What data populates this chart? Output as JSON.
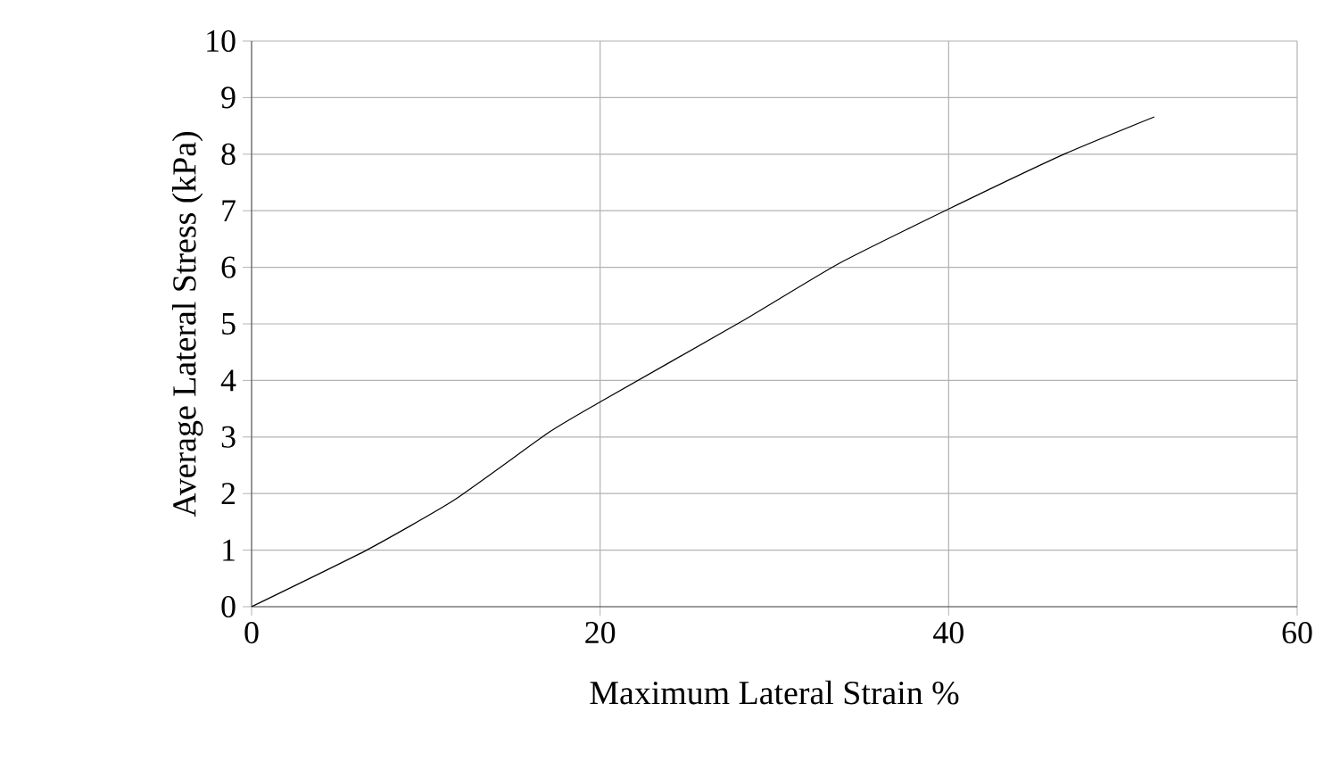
{
  "chart_data": {
    "type": "line",
    "xlabel": "Maximum Lateral Strain %",
    "ylabel": "Average Lateral Stress (kPa)",
    "x": [
      0,
      6.6,
      11.6,
      17.1,
      20,
      28.1,
      33.6,
      40,
      46.7,
      51.8
    ],
    "series": [
      {
        "color": "#000000",
        "values": [
          0,
          1.0,
          1.88,
          3.09,
          3.62,
          5.04,
          6.05,
          7.03,
          8.01,
          8.66
        ]
      }
    ],
    "xlim": [
      0,
      60
    ],
    "ylim": [
      0,
      10
    ],
    "xticks": [
      0,
      20,
      40,
      60
    ],
    "yticks": [
      0,
      1,
      2,
      3,
      4,
      5,
      6,
      7,
      8,
      9,
      10
    ],
    "grid": true,
    "marker": "none",
    "line_style": "solid"
  }
}
